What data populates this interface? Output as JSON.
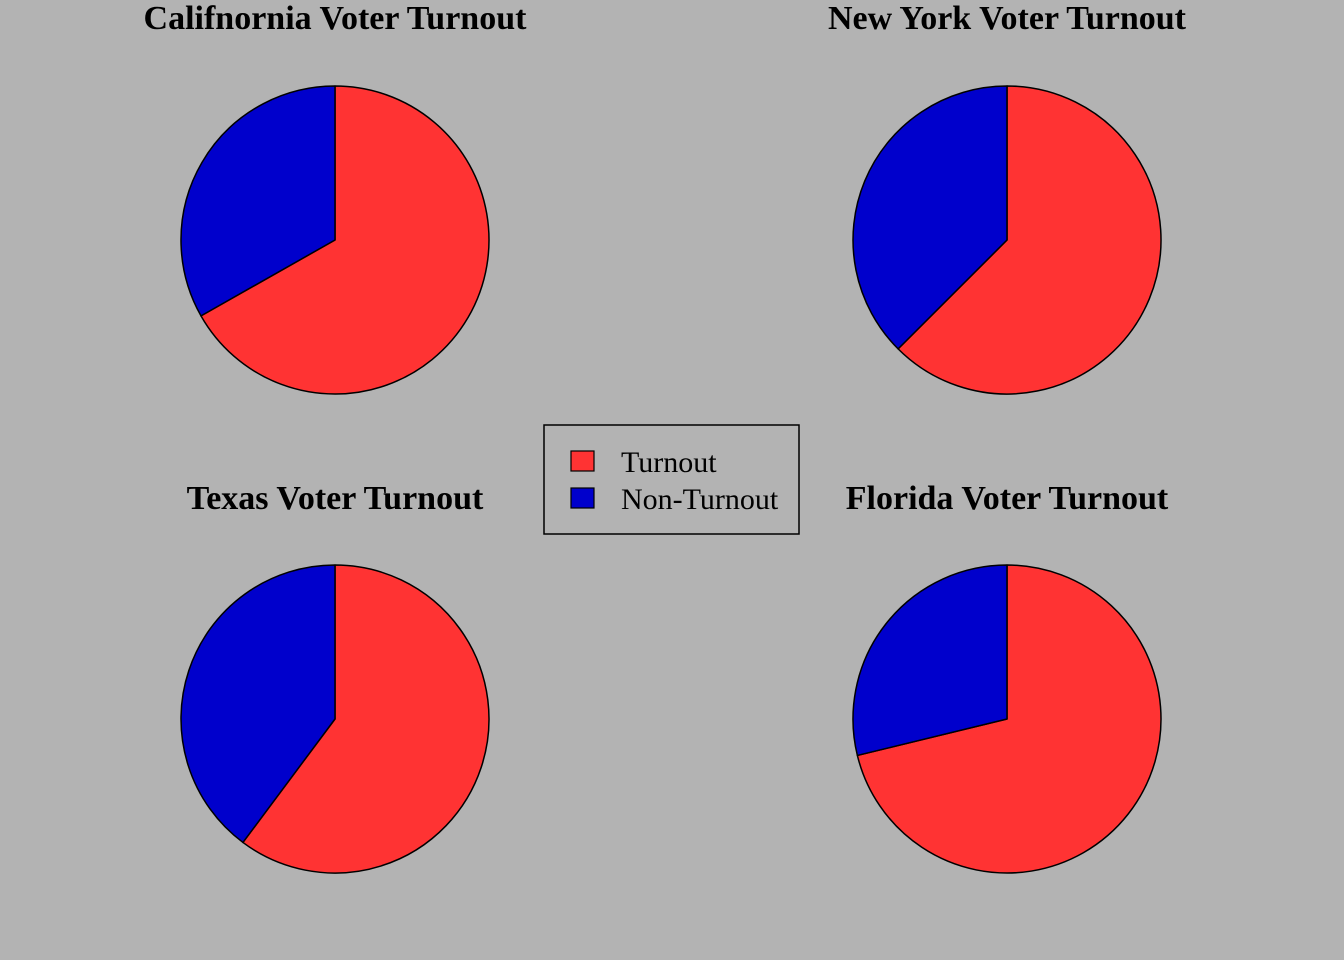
{
  "colors": {
    "background": "#b3b3b3",
    "turnout": "#ff3333",
    "non_turnout": "#0000cc",
    "outline": "#000000"
  },
  "legend": {
    "items": [
      {
        "label": "Turnout",
        "color": "#ff3333"
      },
      {
        "label": "Non-Turnout",
        "color": "#0000cc"
      }
    ]
  },
  "chart_data": [
    {
      "type": "pie",
      "title": "Califnornia Voter Turnout",
      "categories": [
        "Turnout",
        "Non-Turnout"
      ],
      "values": [
        66.8,
        33.2
      ],
      "colors": [
        "#ff3333",
        "#0000cc"
      ]
    },
    {
      "type": "pie",
      "title": "New York Voter Turnout",
      "categories": [
        "Turnout",
        "Non-Turnout"
      ],
      "values": [
        62.5,
        37.5
      ],
      "colors": [
        "#ff3333",
        "#0000cc"
      ]
    },
    {
      "type": "pie",
      "title": "Texas Voter Turnout",
      "categories": [
        "Turnout",
        "Non-Turnout"
      ],
      "values": [
        60.2,
        39.8
      ],
      "colors": [
        "#ff3333",
        "#0000cc"
      ]
    },
    {
      "type": "pie",
      "title": "Florida Voter Turnout",
      "categories": [
        "Turnout",
        "Non-Turnout"
      ],
      "values": [
        71.2,
        28.8
      ],
      "colors": [
        "#ff3333",
        "#0000cc"
      ]
    }
  ]
}
